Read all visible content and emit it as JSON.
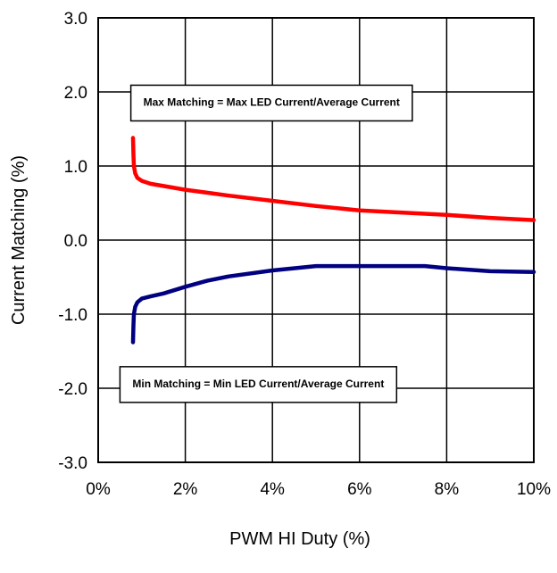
{
  "chart_data": {
    "type": "line",
    "xlabel": "PWM HI Duty (%)",
    "ylabel": "Current Matching (%)",
    "xlim": [
      0,
      10
    ],
    "ylim": [
      -3,
      3
    ],
    "x_ticks": [
      0,
      2,
      4,
      6,
      8,
      10
    ],
    "x_tick_labels": [
      "0%",
      "2%",
      "4%",
      "6%",
      "8%",
      "10%"
    ],
    "y_ticks": [
      3,
      2,
      1,
      0,
      -1,
      -2,
      -3
    ],
    "y_tick_labels": [
      "3.0",
      "2.0",
      "1.0",
      "0.0",
      "-1.0",
      "-2.0",
      "-3.0"
    ],
    "grid": true,
    "series": [
      {
        "color": "#ff0000",
        "x": [
          0.8,
          0.81,
          0.82,
          0.85,
          0.9,
          1.0,
          1.2,
          1.5,
          2.0,
          2.5,
          3.0,
          4.0,
          5.0,
          6.0,
          7.0,
          8.0,
          9.0,
          10.0
        ],
        "y": [
          1.38,
          1.15,
          1.0,
          0.9,
          0.84,
          0.8,
          0.76,
          0.73,
          0.68,
          0.64,
          0.6,
          0.53,
          0.46,
          0.4,
          0.37,
          0.34,
          0.3,
          0.27
        ]
      },
      {
        "color": "#000080",
        "x": [
          0.8,
          0.81,
          0.82,
          0.85,
          0.9,
          1.0,
          1.2,
          1.5,
          2.0,
          2.5,
          3.0,
          4.0,
          5.0,
          6.0,
          7.0,
          7.5,
          8.0,
          9.0,
          10.0
        ],
        "y": [
          -1.38,
          -1.15,
          -1.0,
          -0.9,
          -0.84,
          -0.79,
          -0.76,
          -0.72,
          -0.63,
          -0.55,
          -0.49,
          -0.41,
          -0.35,
          -0.35,
          -0.35,
          -0.35,
          -0.38,
          -0.42,
          -0.43
        ]
      }
    ],
    "annotations": [
      {
        "text": "Max Matching = Max LED Current/Average Current",
        "x": 0.75,
        "y": 1.85
      },
      {
        "text": "Min Matching = Min LED Current/Average Current",
        "x": 0.5,
        "y": -1.95
      }
    ]
  }
}
